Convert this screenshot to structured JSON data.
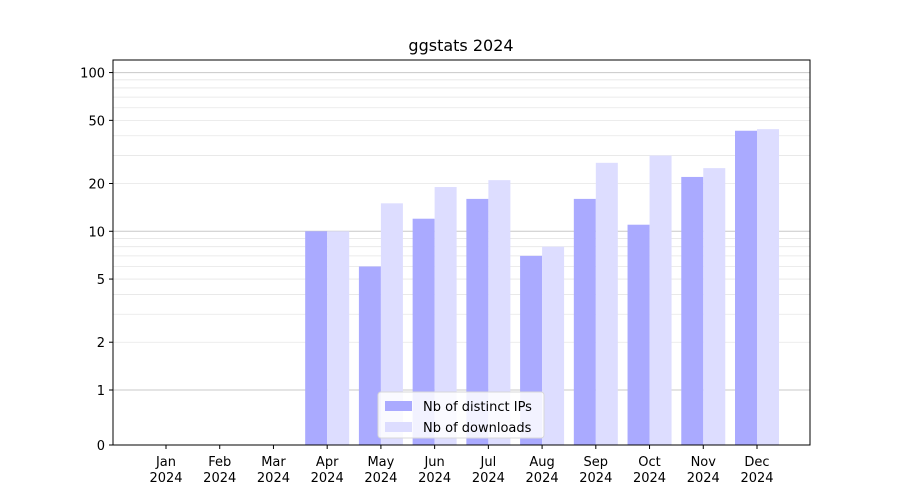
{
  "chart_data": {
    "type": "bar",
    "title": "ggstats 2024",
    "xlabel": "",
    "ylabel": "",
    "categories": [
      "Jan\n2024",
      "Feb\n2024",
      "Mar\n2024",
      "Apr\n2024",
      "May\n2024",
      "Jun\n2024",
      "Jul\n2024",
      "Aug\n2024",
      "Sep\n2024",
      "Oct\n2024",
      "Nov\n2024",
      "Dec\n2024"
    ],
    "series": [
      {
        "name": "Nb of distinct IPs",
        "color": "#aaaaff",
        "values": [
          0,
          0,
          0,
          10,
          6,
          12,
          16,
          7,
          16,
          11,
          22,
          43
        ]
      },
      {
        "name": "Nb of downloads",
        "color": "#ddddff",
        "values": [
          0,
          0,
          0,
          10,
          15,
          19,
          21,
          8,
          27,
          30,
          25,
          44
        ]
      }
    ],
    "yscale": "symlog",
    "ylim": [
      0,
      120
    ],
    "yticks": [
      0,
      1,
      2,
      5,
      10,
      20,
      50,
      100
    ],
    "grid": true,
    "legend_position": "lower-center"
  }
}
